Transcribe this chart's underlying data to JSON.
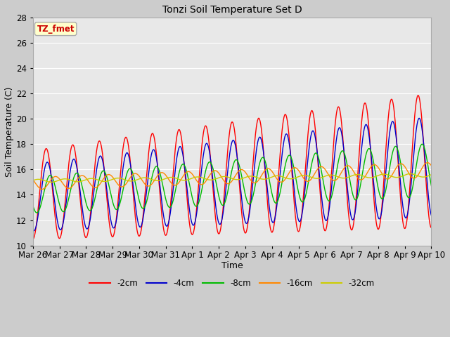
{
  "title": "Tonzi Soil Temperature Set D",
  "xlabel": "Time",
  "ylabel": "Soil Temperature (C)",
  "ylim": [
    10,
    28
  ],
  "days": 15,
  "annotation_text": "TZ_fmet",
  "annotation_color": "#cc0000",
  "annotation_bg": "#ffffcc",
  "annotation_border": "#aaaaaa",
  "plot_bg": "#e8e8e8",
  "legend_labels": [
    "-2cm",
    "-4cm",
    "-8cm",
    "-16cm",
    "-32cm"
  ],
  "line_colors": [
    "#ff0000",
    "#0000cc",
    "#00bb00",
    "#ff8800",
    "#cccc00"
  ],
  "tick_labels": [
    "Mar 26",
    "Mar 27",
    "Mar 28",
    "Mar 29",
    "Mar 30",
    "Mar 31",
    "Apr 1",
    "Apr 2",
    "Apr 3",
    "Apr 4",
    "Apr 5",
    "Apr 6",
    "Apr 7",
    "Apr 8",
    "Apr 9",
    "Apr 10"
  ],
  "yticks": [
    10,
    12,
    14,
    16,
    18,
    20,
    22,
    24,
    26,
    28
  ],
  "num_points": 1440
}
